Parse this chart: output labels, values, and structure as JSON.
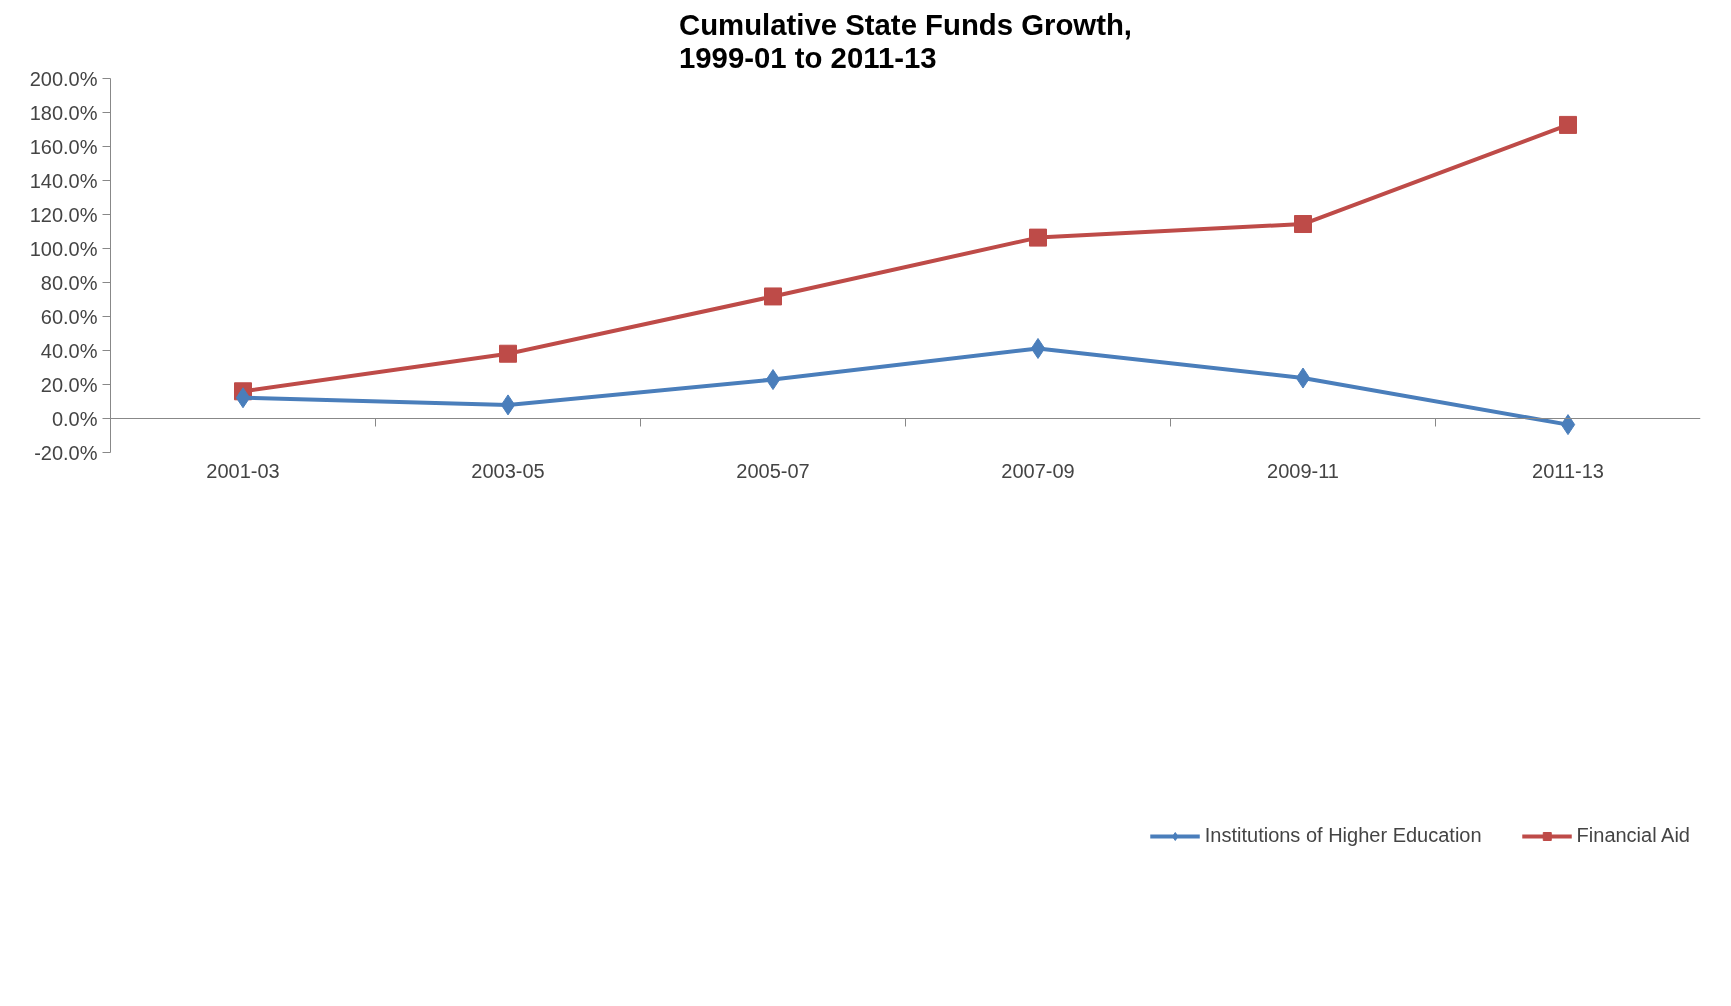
{
  "chart_data": {
    "type": "line",
    "title": "Cumulative State Funds Growth,\n1999-01 to 2011-13",
    "categories": [
      "2001-03",
      "2003-05",
      "2005-07",
      "2007-09",
      "2009-11",
      "2011-13"
    ],
    "series": [
      {
        "name": "Institutions of Higher Education",
        "color": "#4a7ebb",
        "marker": "diamond",
        "values": [
          12.2,
          8.0,
          22.9,
          41.2,
          23.8,
          -3.6
        ]
      },
      {
        "name": "Financial Aid",
        "color": "#be4b48",
        "marker": "square",
        "values": [
          16.0,
          38.1,
          71.8,
          106.4,
          114.4,
          172.7
        ]
      }
    ],
    "ylim": [
      -20,
      200
    ],
    "yticks": [
      {
        "value": -20,
        "label": "-20.0%"
      },
      {
        "value": 0,
        "label": "0.0%"
      },
      {
        "value": 20,
        "label": "20.0%"
      },
      {
        "value": 40,
        "label": "40.0%"
      },
      {
        "value": 60,
        "label": "60.0%"
      },
      {
        "value": 80,
        "label": "80.0%"
      },
      {
        "value": 100,
        "label": "100.0%"
      },
      {
        "value": 120,
        "label": "120.0%"
      },
      {
        "value": 140,
        "label": "140.0%"
      },
      {
        "value": 160,
        "label": "160.0%"
      },
      {
        "value": 180,
        "label": "180.0%"
      },
      {
        "value": 200,
        "label": "200.0%"
      }
    ],
    "grid": false,
    "legend": "bottom",
    "line_style": "solid"
  }
}
